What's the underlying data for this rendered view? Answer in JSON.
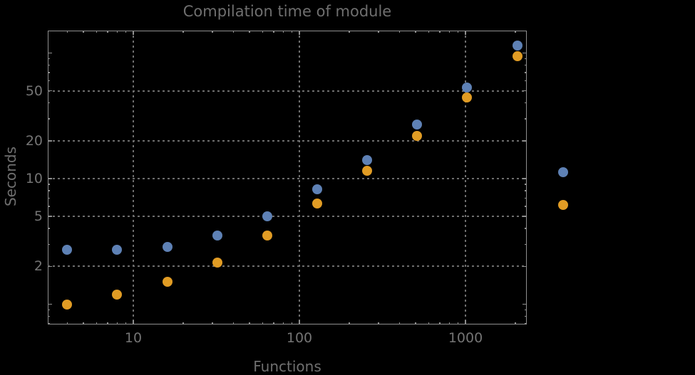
{
  "title": "Compilation time of module",
  "x_axis": {
    "label": "Functions",
    "tick_labels": [
      {
        "value": 10,
        "label": "10"
      },
      {
        "value": 100,
        "label": "100"
      },
      {
        "value": 1000,
        "label": "1000"
      }
    ]
  },
  "y_axis": {
    "label": "Seconds",
    "tick_labels": [
      {
        "value": 2,
        "label": "2"
      },
      {
        "value": 5,
        "label": "5"
      },
      {
        "value": 10,
        "label": "10"
      },
      {
        "value": 20,
        "label": "20"
      },
      {
        "value": 50,
        "label": "50"
      }
    ]
  },
  "colors": {
    "background": "#000000",
    "frame": "#8f8f8f",
    "grid": "#6e6e6e",
    "text": "#6f6f6f",
    "tick_text": "#747474",
    "series_blue": "#5e81b5",
    "series_orange": "#e19c24"
  },
  "legend": {
    "markers": [
      {
        "series": "series-1-blue",
        "color": "#5e81b5"
      },
      {
        "series": "series-2-orange",
        "color": "#e19c24"
      }
    ]
  },
  "chart_data": {
    "type": "scatter",
    "x_scale": "log",
    "y_scale": "log",
    "title": "Compilation time of module",
    "xlabel": "Functions",
    "ylabel": "Seconds",
    "xlim": [
      3,
      2350
    ],
    "ylim": [
      0.67,
      156
    ],
    "grid": "dotted",
    "legend_position": "right-center",
    "x": [
      4,
      8,
      16,
      32,
      64,
      128,
      256,
      512,
      1024,
      2048
    ],
    "series": [
      {
        "name": "series-1-blue",
        "color": "#5e81b5",
        "values": [
          2.7,
          2.7,
          2.85,
          3.5,
          5.0,
          8.2,
          14,
          27,
          53,
          115
        ]
      },
      {
        "name": "series-2-orange",
        "color": "#e19c24",
        "values": [
          1.0,
          1.2,
          1.5,
          2.15,
          3.5,
          6.3,
          11.6,
          22,
          44,
          94
        ]
      }
    ],
    "x_gridlines": [
      10,
      100,
      1000
    ],
    "y_gridlines": [
      2,
      5,
      10,
      20,
      50
    ],
    "x_minor_ticks": [
      4,
      5,
      6,
      7,
      8,
      9,
      20,
      30,
      40,
      50,
      60,
      70,
      80,
      90,
      200,
      300,
      400,
      500,
      600,
      700,
      800,
      900,
      2000
    ],
    "y_minor_ticks": [
      0.7,
      0.8,
      0.9,
      3,
      4,
      6,
      7,
      8,
      9,
      30,
      40,
      60,
      70,
      80,
      90
    ],
    "y_major_unlabeled": [
      1,
      100
    ]
  }
}
